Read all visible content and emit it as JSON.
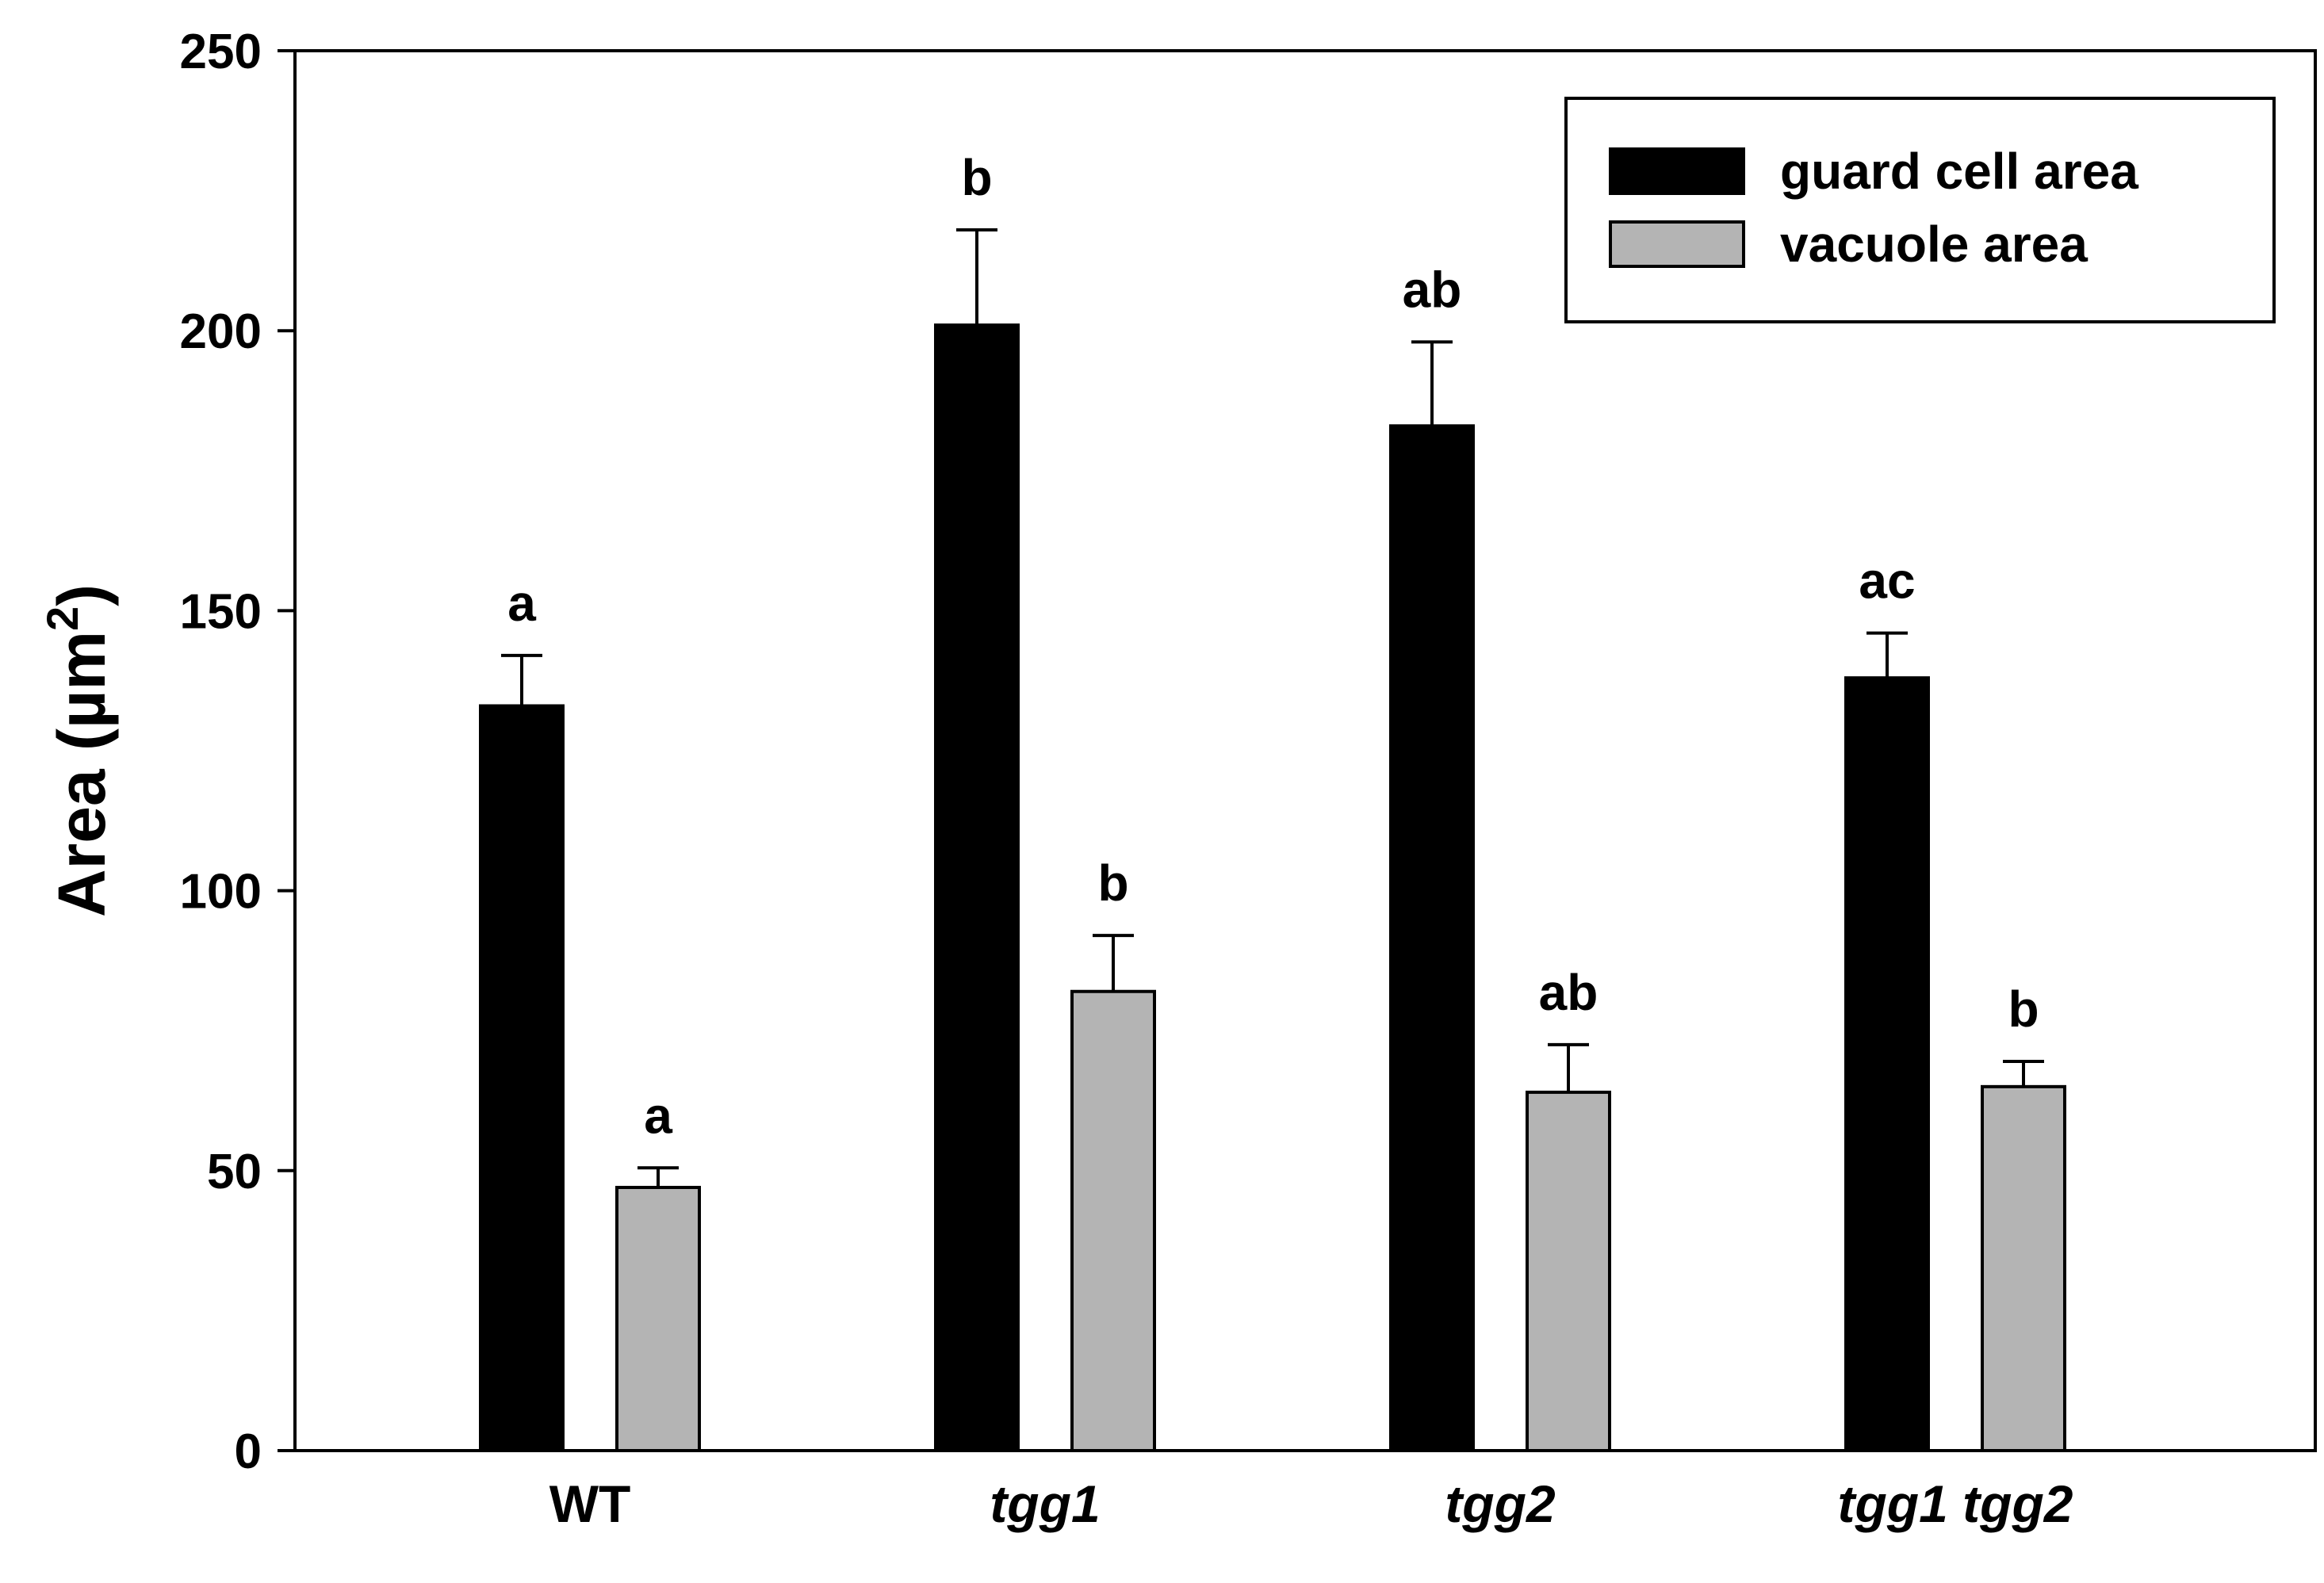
{
  "chart_data": {
    "type": "bar",
    "title": "",
    "xlabel": "",
    "ylabel": "Area (µm²)",
    "ylabel_parts": {
      "main": "Area (µm",
      "sup": "2",
      "end": ")"
    },
    "ylim": [
      0,
      250
    ],
    "yticks": [
      0,
      50,
      100,
      150,
      200,
      250
    ],
    "grid": false,
    "legend_position": "top-right",
    "categories": [
      {
        "label": "WT",
        "italic": false
      },
      {
        "label": "tgg1",
        "italic": true
      },
      {
        "label": "tgg2",
        "italic": true
      },
      {
        "label": "tgg1 tgg2",
        "italic": true
      }
    ],
    "series": [
      {
        "name": "guard cell area",
        "color": "#000000",
        "values": [
          133,
          201,
          183,
          138
        ],
        "errors": [
          9,
          17,
          15,
          8
        ],
        "significance": [
          "a",
          "b",
          "ab",
          "ac"
        ]
      },
      {
        "name": "vacuole area",
        "color": "#b4b4b4",
        "values": [
          47,
          82,
          64,
          65
        ],
        "errors": [
          3.5,
          10,
          8.5,
          4.5
        ],
        "significance": [
          "a",
          "b",
          "ab",
          "b"
        ]
      }
    ]
  }
}
